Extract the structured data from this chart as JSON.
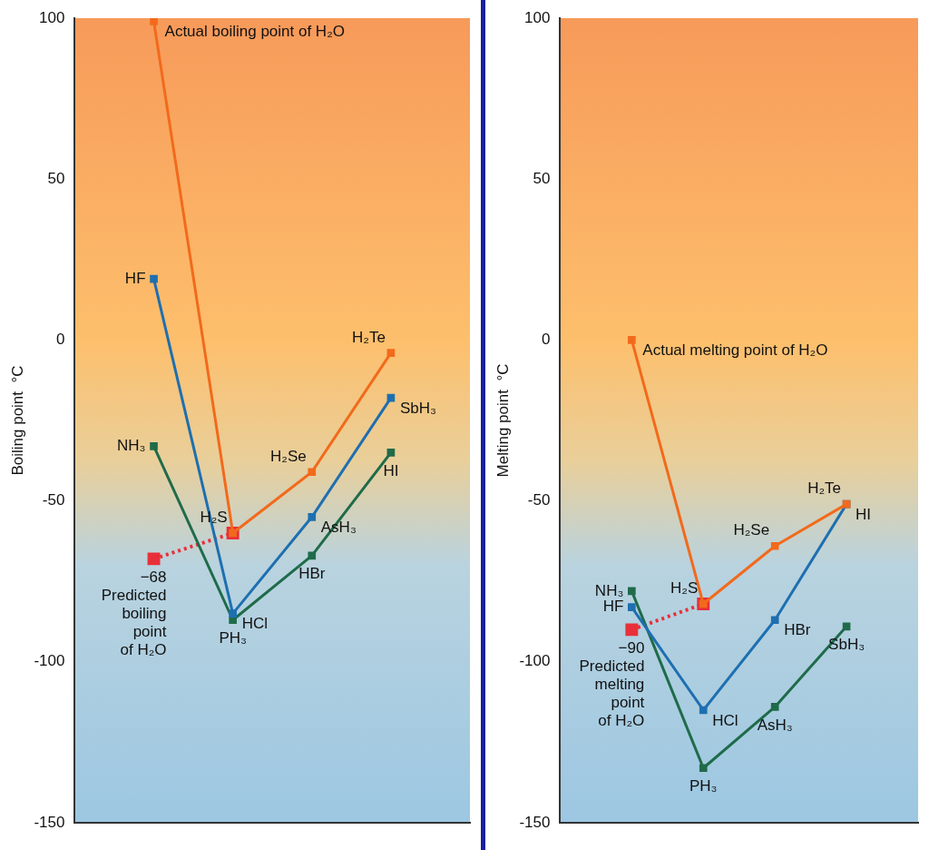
{
  "chart_data": [
    {
      "type": "line",
      "ylabel": "Boiling point  °C",
      "categories": [
        null,
        null,
        null,
        null
      ],
      "ylim": [
        -150,
        100
      ],
      "yticks": [
        -150,
        -100,
        -50,
        0,
        50,
        100
      ],
      "grid": false,
      "legend": false,
      "tick_labels": "y",
      "marker": "square",
      "series": [
        {
          "color": "#f26a1b",
          "values": [
            99,
            -60,
            -41,
            -4
          ],
          "value_labels": [
            "Actual boiling point of H₂O",
            "H₂S",
            "H₂Se",
            "H₂Te"
          ]
        },
        {
          "color": "#1e6fb0",
          "values": [
            19,
            -85,
            -55,
            -18
          ],
          "value_labels": [
            "HF",
            "HCl",
            "AsH₃",
            "SbH₃"
          ]
        },
        {
          "color": "#1f6b4a",
          "values": [
            -33,
            -87,
            -67,
            -35
          ],
          "value_labels": [
            "NH₃",
            "PH₃",
            "HBr",
            "HI"
          ]
        },
        {
          "color": "#e8303a",
          "line_style": "dotted",
          "values": [
            -68,
            -60,
            null,
            null
          ],
          "value_labels": [
            "−68\nPredicted\nboiling\npoint\nof H₂O",
            null,
            null,
            null
          ]
        }
      ]
    },
    {
      "type": "line",
      "ylabel": "Melting point  °C",
      "categories": [
        null,
        null,
        null,
        null
      ],
      "ylim": [
        -150,
        100
      ],
      "yticks": [
        -150,
        -100,
        -50,
        0,
        50,
        100
      ],
      "grid": false,
      "legend": false,
      "tick_labels": "y",
      "marker": "square",
      "series": [
        {
          "color": "#f26a1b",
          "values": [
            0,
            -82,
            -64,
            -51
          ],
          "value_labels": [
            "Actual melting point of H₂O",
            "H₂S",
            "H₂Se",
            "H₂Te"
          ]
        },
        {
          "color": "#1e6fb0",
          "values": [
            -83,
            -115,
            -87,
            -51
          ],
          "value_labels": [
            "HF",
            "HCl",
            "HBr",
            "HI"
          ]
        },
        {
          "color": "#1f6b4a",
          "values": [
            -78,
            -133,
            -114,
            -89
          ],
          "value_labels": [
            "NH₃",
            "PH₃",
            "AsH₃",
            "SbH₃"
          ]
        },
        {
          "color": "#e8303a",
          "line_style": "dotted",
          "values": [
            -90,
            -82,
            null,
            null
          ],
          "value_labels": [
            "−90\nPredicted\nmelting\npoint\nof H₂O",
            null,
            null,
            null
          ]
        }
      ]
    }
  ]
}
